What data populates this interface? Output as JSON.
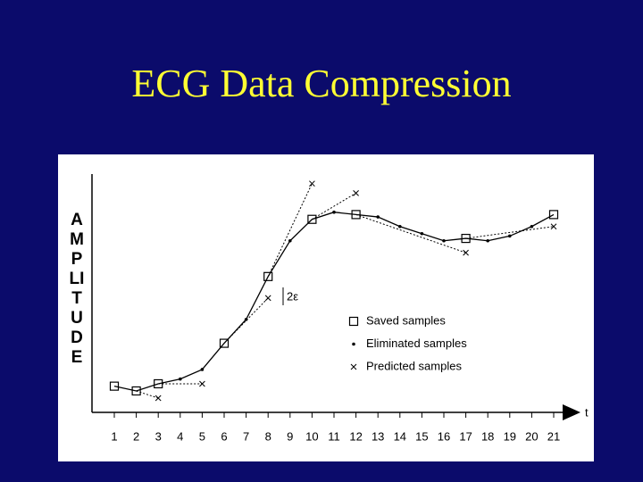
{
  "chart_data": {
    "type": "line",
    "title": "ECG Data Compression",
    "ylabel": "AMPLITUDE",
    "xlabel": "t",
    "annotation": "2ε",
    "categories": [
      "1",
      "2",
      "3",
      "4",
      "5",
      "6",
      "7",
      "8",
      "9",
      "10",
      "11",
      "12",
      "13",
      "14",
      "15",
      "16",
      "17",
      "18",
      "19",
      "20",
      "21"
    ],
    "values": [
      11,
      9,
      12,
      14,
      18,
      29,
      39,
      57,
      72,
      81,
      84,
      83,
      82,
      78,
      75,
      72,
      73,
      72,
      74,
      78,
      83
    ],
    "color": "#000000",
    "ylim": [
      0,
      100
    ],
    "series": [
      {
        "name": "Saved samples",
        "marker": "square",
        "color": "#000000",
        "values": [
          11,
          9,
          12,
          null,
          null,
          29,
          null,
          57,
          null,
          81,
          null,
          83,
          null,
          null,
          null,
          null,
          73,
          null,
          null,
          null,
          83
        ]
      },
      {
        "name": "Eliminated samples",
        "marker": "dot",
        "color": "#000000",
        "values": [
          null,
          null,
          null,
          14,
          18,
          null,
          39,
          null,
          72,
          null,
          84,
          null,
          82,
          78,
          75,
          72,
          null,
          72,
          74,
          78,
          null
        ]
      },
      {
        "name": "Predicted samples",
        "marker": "cross",
        "color": "#000000",
        "values": [
          null,
          null,
          6,
          null,
          12,
          null,
          null,
          48,
          null,
          96,
          null,
          92,
          null,
          null,
          null,
          null,
          67,
          null,
          null,
          null,
          78
        ]
      }
    ]
  }
}
